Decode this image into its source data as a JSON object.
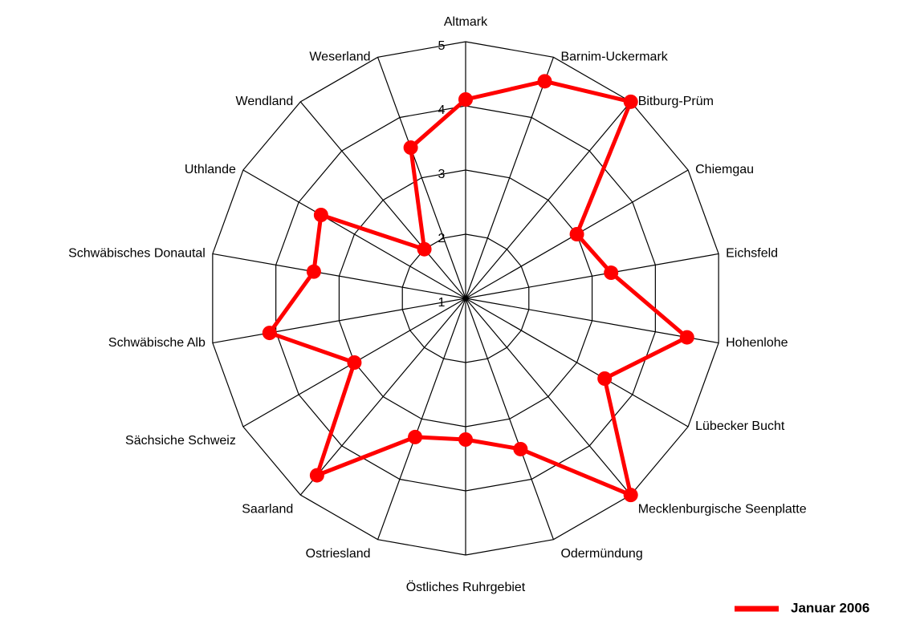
{
  "chart_data": {
    "type": "radar",
    "categories": [
      "Altmark",
      "Barnim-Uckermark",
      "Bitburg-Prüm",
      "Chiemgau",
      "Eichsfeld",
      "Hohenlohe",
      "Lübecker Bucht",
      "Mecklenburgische Seenplatte",
      "Odermündung",
      "Östliches Ruhrgebiet",
      "Ostriesland",
      "Saarland",
      "Sächsiche Schweiz",
      "Schwäbische Alb",
      "Schwäbisches Donautal",
      "Uthlande",
      "Wendland",
      "Weserland"
    ],
    "series": [
      {
        "name": "Januar 2006",
        "color": "#ff0000",
        "values": [
          4.1,
          4.6,
          5.0,
          3.0,
          3.3,
          4.5,
          3.5,
          5.0,
          3.5,
          3.2,
          3.3,
          4.6,
          3.0,
          4.1,
          3.4,
          3.6,
          2.0,
          3.5
        ]
      }
    ],
    "rlim": [
      1,
      5
    ],
    "rticks": [
      1,
      2,
      3,
      4,
      5
    ],
    "grid": true,
    "legend": "bottom-right"
  }
}
